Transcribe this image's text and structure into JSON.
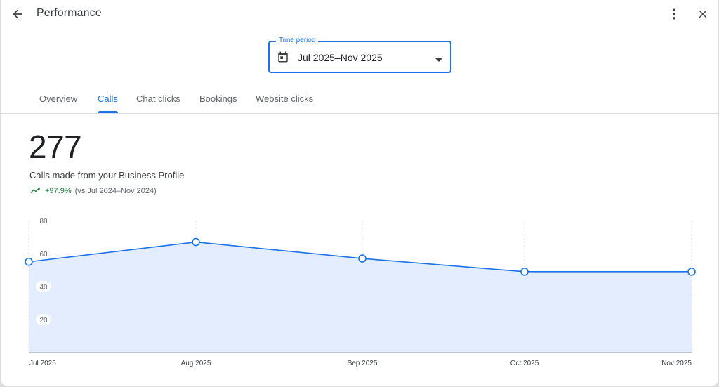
{
  "header": {
    "title": "Performance",
    "back_icon": "arrow-back-icon",
    "more_icon": "more-vert-icon",
    "close_icon": "close-icon"
  },
  "time_period": {
    "label": "Time period",
    "value": "Jul 2025–Nov 2025",
    "icon": "calendar-icon"
  },
  "tabs": [
    {
      "label": "Overview",
      "active": false
    },
    {
      "label": "Calls",
      "active": true
    },
    {
      "label": "Chat clicks",
      "active": false
    },
    {
      "label": "Bookings",
      "active": false
    },
    {
      "label": "Website clicks",
      "active": false
    }
  ],
  "metric": {
    "value": "277",
    "label": "Calls made from your Business Profile",
    "change": "+97.9%",
    "comparison": "(vs Jul 2024–Nov 2024)"
  },
  "colors": {
    "accent": "#1a73e8",
    "line": "#1a73e8",
    "area": "#e3edfd",
    "positive": "#188038"
  },
  "chart_data": {
    "type": "area",
    "categories": [
      "Jul 2025",
      "Aug 2025",
      "Sep 2025",
      "Oct 2025",
      "Nov 2025"
    ],
    "values": [
      55,
      67,
      57,
      49,
      49
    ],
    "y_ticks": [
      20,
      40,
      60,
      80
    ],
    "ylim": [
      0,
      80
    ],
    "grid": "vertical dotted"
  }
}
